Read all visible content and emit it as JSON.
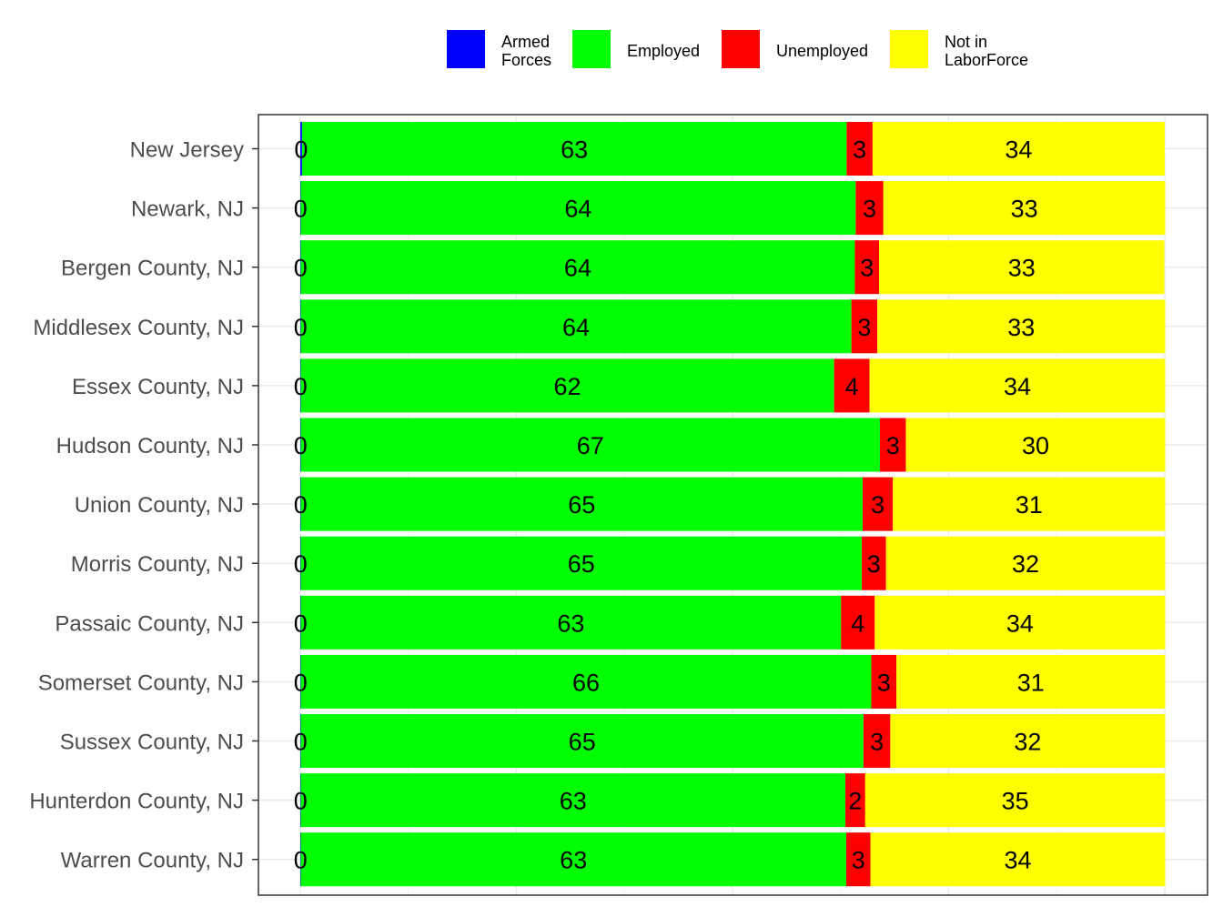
{
  "chart_data": {
    "type": "bar",
    "orientation": "horizontal",
    "stacked": true,
    "title": "",
    "xlabel": "",
    "ylabel": "",
    "grid": true,
    "legend_position": "top",
    "categories": [
      "New Jersey",
      "Newark, NJ",
      "Bergen County, NJ",
      "Middlesex County, NJ",
      "Essex County, NJ",
      "Hudson County, NJ",
      "Union County, NJ",
      "Morris County, NJ",
      "Passaic County, NJ",
      "Somerset County, NJ",
      "Sussex County, NJ",
      "Hunterdon County, NJ",
      "Warren County, NJ"
    ],
    "series": [
      {
        "name": "Armed Forces",
        "legend_lines": [
          "Armed",
          "Forces"
        ],
        "color": "#0000ff",
        "values": [
          0.2,
          0.05,
          0.05,
          0.05,
          0.05,
          0.05,
          0.05,
          0.05,
          0.05,
          0.05,
          0.05,
          0.05,
          0.05
        ],
        "labels": [
          "0",
          "0",
          "0",
          "0",
          "0",
          "0",
          "0",
          "0",
          "0",
          "0",
          "0",
          "0",
          "0"
        ]
      },
      {
        "name": "Employed",
        "legend_lines": [
          "Employed"
        ],
        "color": "#00ff00",
        "values": [
          63.0,
          64.2,
          64.1,
          63.7,
          61.7,
          67.0,
          65.0,
          64.9,
          62.5,
          66.0,
          65.1,
          63.0,
          63.1
        ],
        "labels": [
          "63",
          "64",
          "64",
          "64",
          "62",
          "67",
          "65",
          "65",
          "63",
          "66",
          "65",
          "63",
          "63"
        ]
      },
      {
        "name": "Unemployed",
        "legend_lines": [
          "Unemployed"
        ],
        "color": "#ff0000",
        "values": [
          3.0,
          3.2,
          2.8,
          3.0,
          4.1,
          3.0,
          3.5,
          2.8,
          3.9,
          2.9,
          3.1,
          2.3,
          2.8
        ],
        "labels": [
          "3",
          "3",
          "3",
          "3",
          "4",
          "3",
          "3",
          "3",
          "4",
          "3",
          "3",
          "2",
          "3"
        ]
      },
      {
        "name": "Not in LaborForce",
        "legend_lines": [
          "Not in",
          "LaborForce"
        ],
        "color": "#ffff00",
        "values": [
          33.8,
          32.6,
          33.0,
          33.3,
          34.2,
          30.0,
          31.5,
          32.3,
          33.6,
          31.1,
          31.8,
          34.7,
          34.1
        ],
        "labels": [
          "34",
          "33",
          "33",
          "33",
          "34",
          "30",
          "31",
          "32",
          "34",
          "31",
          "32",
          "35",
          "34"
        ]
      }
    ],
    "xlim": [
      0,
      100
    ]
  }
}
